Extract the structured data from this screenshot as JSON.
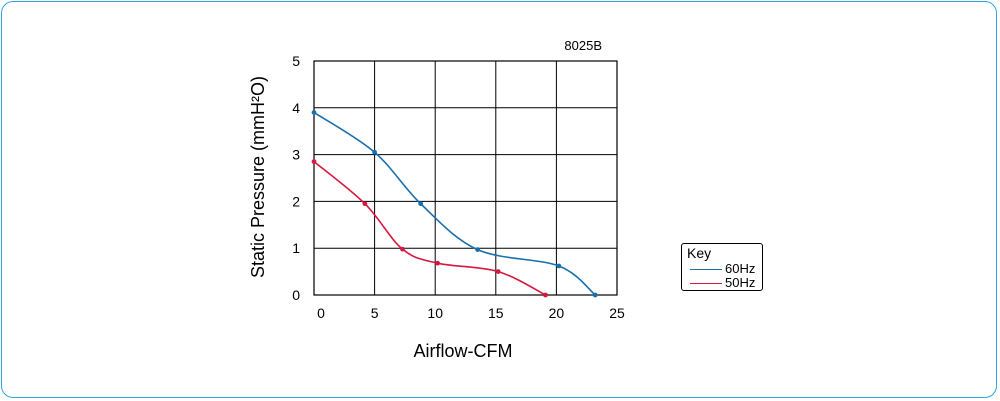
{
  "chart_data": {
    "type": "line",
    "model_label": "8025B",
    "xlabel": "Airflow-CFM",
    "ylabel": "Static Pressure (mmH²O)",
    "xlim": [
      0,
      25
    ],
    "ylim": [
      0,
      5
    ],
    "xticks": [
      0,
      5,
      10,
      15,
      20,
      25
    ],
    "yticks": [
      0,
      1,
      2,
      3,
      4,
      5
    ],
    "grid": true,
    "legend_title": "Key",
    "legend_position": "right",
    "series": [
      {
        "name": "60Hz",
        "color": "#1a6fad",
        "points": [
          [
            0,
            3.9
          ],
          [
            5,
            3.05
          ],
          [
            8.8,
            1.95
          ],
          [
            13.5,
            0.97
          ],
          [
            20.2,
            0.62
          ],
          [
            23.2,
            0
          ]
        ]
      },
      {
        "name": "50Hz",
        "color": "#d7193f",
        "points": [
          [
            0,
            2.85
          ],
          [
            4.2,
            1.95
          ],
          [
            7.3,
            0.98
          ],
          [
            10.2,
            0.68
          ],
          [
            15.2,
            0.5
          ],
          [
            19.1,
            0
          ]
        ]
      }
    ]
  }
}
